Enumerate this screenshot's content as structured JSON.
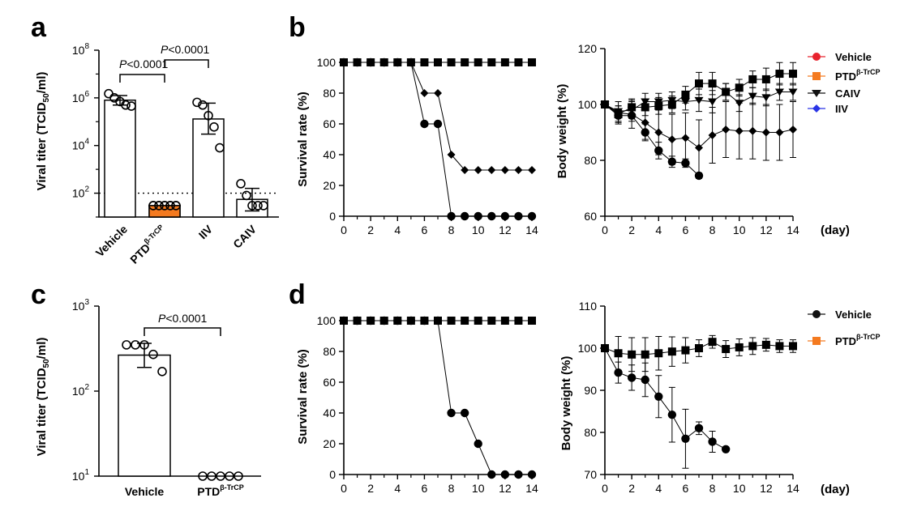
{
  "panels": {
    "a": "a",
    "b": "b",
    "c": "c",
    "d": "d"
  },
  "colors": {
    "vehicle_red": "#e8232e",
    "ptd_orange": "#f47a20",
    "caiv_black": "#111111",
    "iiv_blue": "#2a35e6",
    "vehicle_black": "#111111"
  },
  "icons": {
    "vehicle_b": "circle",
    "ptd": "square",
    "caiv": "triangle-down",
    "iiv": "diamond",
    "vehicle_d": "circle"
  },
  "labels": {
    "viral_titer_prefix": "Viral titer (TCID",
    "viral_titer_sub": "50",
    "viral_titer_suffix": "/ml)",
    "survival": "Survival rate (%)",
    "body_weight": "Body weight (%)",
    "day": "(day)",
    "ptd_base": "PTD",
    "ptd_sup": "β-TrCP",
    "vehicle": "Vehicle",
    "caiv": "CAIV",
    "iiv": "IIV",
    "p_value": "<0.0001",
    "p_letter": "P"
  },
  "chart_data": [
    {
      "id": "a",
      "type": "bar",
      "scale": "log10",
      "ylim": [
        10,
        100000000
      ],
      "yticks": [
        {
          "base": "10",
          "exp": "2"
        },
        {
          "base": "10",
          "exp": "4"
        },
        {
          "base": "10",
          "exp": "6"
        },
        {
          "base": "10",
          "exp": "8"
        }
      ],
      "categories": [
        "Vehicle",
        "PTDβ-TrCP",
        "IIV",
        "CAIV"
      ],
      "values": [
        800000,
        30,
        130000,
        55
      ],
      "error_low": [
        500000,
        30,
        30000,
        18
      ],
      "error_high": [
        1250000,
        30,
        600000,
        160
      ],
      "points": [
        [
          1500000,
          1000000,
          700000,
          500000,
          450000
        ],
        [
          30,
          30,
          30,
          30,
          30
        ],
        [
          650000,
          500000,
          180000,
          60000,
          8000
        ],
        [
          250,
          80,
          30,
          30,
          30
        ]
      ],
      "detection_limit": 100,
      "comparisons": [
        {
          "pair": [
            0,
            1
          ],
          "p": "<0.0001"
        },
        {
          "pair": [
            1,
            2
          ],
          "p": "<0.0001"
        }
      ]
    },
    {
      "id": "b-survival",
      "type": "line",
      "xlabel": "",
      "ylabel": "Survival rate (%)",
      "xlim": [
        0,
        14
      ],
      "ylim": [
        0,
        100
      ],
      "xticks": [
        0,
        2,
        4,
        6,
        8,
        10,
        12,
        14
      ],
      "yticks": [
        0,
        20,
        40,
        60,
        80,
        100
      ],
      "series": [
        {
          "key": "vehicle_b",
          "x": [
            0,
            1,
            2,
            3,
            4,
            5,
            6,
            7,
            8,
            9,
            10,
            11,
            12,
            13,
            14
          ],
          "y": [
            100,
            100,
            100,
            100,
            100,
            100,
            60,
            60,
            0,
            0,
            0,
            0,
            0,
            0,
            0
          ]
        },
        {
          "key": "iiv",
          "x": [
            0,
            1,
            2,
            3,
            4,
            5,
            6,
            7,
            8,
            9,
            10,
            11,
            12,
            13,
            14
          ],
          "y": [
            100,
            100,
            100,
            100,
            100,
            100,
            80,
            80,
            40,
            30,
            30,
            30,
            30,
            30,
            30
          ]
        },
        {
          "key": "ptd",
          "x": [
            0,
            1,
            2,
            3,
            4,
            5,
            6,
            7,
            8,
            9,
            10,
            11,
            12,
            13,
            14
          ],
          "y": [
            100,
            100,
            100,
            100,
            100,
            100,
            100,
            100,
            100,
            100,
            100,
            100,
            100,
            100,
            100
          ]
        }
      ]
    },
    {
      "id": "b-weight",
      "type": "line",
      "xlabel": "(day)",
      "ylabel": "Body weight (%)",
      "xlim": [
        0,
        14
      ],
      "ylim": [
        60,
        120
      ],
      "xticks": [
        0,
        2,
        4,
        6,
        8,
        10,
        12,
        14
      ],
      "yticks": [
        60,
        80,
        100,
        120
      ],
      "legend": [
        "Vehicle",
        "PTDβ-TrCP",
        "CAIV",
        "IIV"
      ],
      "series": [
        {
          "key": "vehicle_b",
          "name": "Vehicle",
          "x": [
            0,
            1,
            2,
            3,
            4,
            5,
            6,
            7
          ],
          "y": [
            100,
            96,
            96,
            90,
            83.5,
            79.5,
            79,
            74.5
          ],
          "err": [
            0,
            2,
            2,
            3,
            3,
            2,
            1.5,
            1
          ]
        },
        {
          "key": "ptd",
          "name": "PTDβ-TrCP",
          "x": [
            0,
            1,
            2,
            3,
            4,
            5,
            6,
            7,
            8,
            9,
            10,
            11,
            12,
            13,
            14
          ],
          "y": [
            100,
            96.5,
            99,
            99,
            99.5,
            100,
            103.5,
            107.5,
            107.5,
            104.5,
            106,
            109,
            109,
            111,
            111
          ],
          "err": [
            0,
            3,
            3,
            3,
            3,
            3,
            3,
            4,
            4,
            3,
            3,
            3,
            4,
            4,
            4
          ]
        },
        {
          "key": "caiv",
          "name": "CAIV",
          "x": [
            0,
            1,
            2,
            3,
            4,
            5,
            6,
            7,
            8,
            9,
            10,
            11,
            12,
            13,
            14
          ],
          "y": [
            100,
            97.5,
            98,
            101,
            101,
            101.5,
            101,
            101.5,
            101,
            104.5,
            100.5,
            103,
            102.5,
            104.5,
            104.5
          ],
          "err": [
            0,
            2,
            3,
            3,
            3,
            3,
            3,
            4,
            4,
            3,
            3,
            3,
            3,
            3,
            3
          ]
        },
        {
          "key": "iiv",
          "name": "IIV",
          "x": [
            0,
            1,
            2,
            3,
            4,
            5,
            6,
            7,
            8,
            9,
            10,
            11,
            12,
            13,
            14
          ],
          "y": [
            100,
            97,
            96.5,
            93.5,
            90,
            87.5,
            88,
            84.5,
            89,
            91,
            90.5,
            90.5,
            90,
            90,
            91
          ],
          "err": [
            0,
            4,
            5,
            6,
            8,
            9,
            9,
            10,
            10,
            10,
            10,
            10,
            10,
            10,
            10
          ]
        }
      ]
    },
    {
      "id": "c",
      "type": "bar",
      "scale": "log10",
      "ylim": [
        10,
        1000
      ],
      "yticks": [
        {
          "base": "10",
          "exp": "1"
        },
        {
          "base": "10",
          "exp": "2"
        },
        {
          "base": "10",
          "exp": "3"
        }
      ],
      "categories": [
        "Vehicle",
        "PTDβ-TrCP"
      ],
      "values": [
        265,
        10
      ],
      "error_low": [
        190,
        10
      ],
      "error_high": [
        365,
        10
      ],
      "points": [
        [
          350,
          350,
          350,
          270,
          170
        ],
        [
          10,
          10,
          10,
          10,
          10
        ]
      ],
      "comparisons": [
        {
          "pair": [
            0,
            1
          ],
          "p": "<0.0001"
        }
      ]
    },
    {
      "id": "d-survival",
      "type": "line",
      "xlabel": "",
      "ylabel": "Survival rate (%)",
      "xlim": [
        0,
        14
      ],
      "ylim": [
        0,
        100
      ],
      "xticks": [
        0,
        2,
        4,
        6,
        8,
        10,
        12,
        14
      ],
      "yticks": [
        0,
        20,
        40,
        60,
        80,
        100
      ],
      "series": [
        {
          "key": "vehicle_d",
          "x": [
            0,
            1,
            2,
            3,
            4,
            5,
            6,
            7,
            8,
            9,
            10,
            11,
            12,
            13,
            14
          ],
          "y": [
            100,
            100,
            100,
            100,
            100,
            100,
            100,
            100,
            40,
            40,
            20,
            0,
            0,
            0,
            0
          ]
        },
        {
          "key": "ptd",
          "x": [
            0,
            1,
            2,
            3,
            4,
            5,
            6,
            7,
            8,
            9,
            10,
            11,
            12,
            13,
            14
          ],
          "y": [
            100,
            100,
            100,
            100,
            100,
            100,
            100,
            100,
            100,
            100,
            100,
            100,
            100,
            100,
            100
          ]
        }
      ]
    },
    {
      "id": "d-weight",
      "type": "line",
      "xlabel": "(day)",
      "ylabel": "Body weight (%)",
      "xlim": [
        0,
        14
      ],
      "ylim": [
        70,
        110
      ],
      "xticks": [
        0,
        2,
        4,
        6,
        8,
        10,
        12,
        14
      ],
      "yticks": [
        70,
        80,
        90,
        100,
        110
      ],
      "legend": [
        "Vehicle",
        "PTDβ-TrCP"
      ],
      "series": [
        {
          "key": "vehicle_d",
          "name": "Vehicle",
          "x": [
            0,
            1,
            2,
            3,
            4,
            5,
            6,
            7,
            8,
            9
          ],
          "y": [
            100,
            94.2,
            93,
            92.5,
            88.5,
            84.2,
            78.5,
            81,
            77.8,
            76
          ],
          "err": [
            0,
            2.5,
            3,
            4,
            5,
            6.5,
            7,
            1.5,
            2.5,
            0
          ]
        },
        {
          "key": "ptd",
          "name": "PTDβ-TrCP",
          "x": [
            0,
            1,
            2,
            3,
            4,
            5,
            6,
            7,
            8,
            9,
            10,
            11,
            12,
            13,
            14
          ],
          "y": [
            100,
            98.8,
            98.5,
            98.5,
            98.8,
            99.2,
            99.5,
            100,
            101.5,
            99.8,
            100.2,
            100.5,
            100.8,
            100.5,
            100.5
          ],
          "err": [
            0,
            4,
            4,
            4,
            4,
            3.5,
            3,
            2,
            1.5,
            2,
            2,
            2,
            1.5,
            1.5,
            1.5
          ]
        }
      ]
    }
  ]
}
